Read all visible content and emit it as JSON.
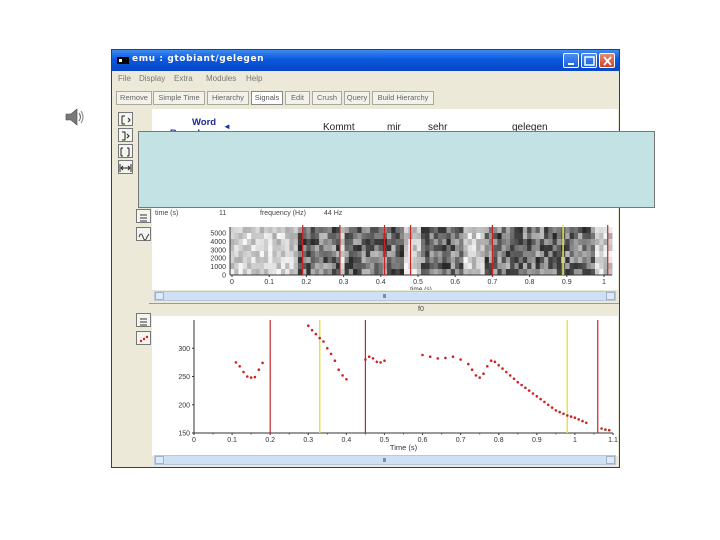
{
  "window": {
    "title": "emu : gtobiant/gelegen"
  },
  "menu": [
    "File",
    "Display",
    "Extra",
    "Modules",
    "Help"
  ],
  "toolbar": [
    "Remove",
    "Simple Time",
    "Hierarchy",
    "Signals",
    "Edit",
    "Crush",
    "Query",
    "Build Hierarchy"
  ],
  "toolbar_active": "Signals",
  "labels": {
    "tier_name": "Word",
    "tier_name2": "Boundary",
    "words": [
      "Kommt",
      "mir",
      "sehr",
      "gelegen"
    ]
  },
  "spectrogram": {
    "time_label": "time (s)",
    "time_value": "11",
    "freq_label": "frequency (Hz)",
    "freq_value": "44 Hz",
    "y_ticks": [
      "5000",
      "4000",
      "3000",
      "2000",
      "1000",
      "0"
    ],
    "x_ticks": [
      "0",
      "0.1",
      "0.2",
      "0.3",
      "0.4",
      "0.5",
      "0.6",
      "0.7",
      "0.8",
      "0.9",
      "1"
    ],
    "x_label": "time (s)"
  },
  "pitch_header": "f0",
  "chart_data": {
    "type": "scatter",
    "xlabel": "Time (s)",
    "ylabel": "",
    "xlim": [
      0,
      1.1
    ],
    "ylim": [
      150,
      350
    ],
    "x_ticks": [
      "0",
      "0.1",
      "0.2",
      "0.3",
      "0.4",
      "0.5",
      "0.6",
      "0.7",
      "0.8",
      "0.9",
      "1",
      "1.1"
    ],
    "y_ticks": [
      "300",
      "250",
      "200",
      "150"
    ],
    "boundaries": [
      0.2,
      0.45,
      1.06
    ],
    "markers": [
      0.33,
      0.98
    ],
    "series": [
      {
        "color": "#cc2222",
        "points": [
          [
            0.11,
            275
          ],
          [
            0.12,
            268
          ],
          [
            0.13,
            258
          ],
          [
            0.14,
            250
          ],
          [
            0.15,
            248
          ],
          [
            0.16,
            249
          ],
          [
            0.17,
            262
          ],
          [
            0.18,
            274
          ],
          [
            0.3,
            340
          ],
          [
            0.31,
            332
          ],
          [
            0.32,
            325
          ],
          [
            0.33,
            318
          ],
          [
            0.34,
            312
          ],
          [
            0.35,
            300
          ],
          [
            0.36,
            290
          ],
          [
            0.37,
            278
          ],
          [
            0.38,
            262
          ],
          [
            0.39,
            252
          ],
          [
            0.4,
            245
          ],
          [
            0.45,
            280
          ],
          [
            0.46,
            285
          ],
          [
            0.47,
            282
          ],
          [
            0.48,
            276
          ],
          [
            0.49,
            275
          ],
          [
            0.5,
            278
          ],
          [
            0.6,
            288
          ],
          [
            0.62,
            285
          ],
          [
            0.64,
            282
          ],
          [
            0.66,
            283
          ],
          [
            0.68,
            285
          ],
          [
            0.7,
            280
          ],
          [
            0.72,
            272
          ],
          [
            0.73,
            262
          ],
          [
            0.74,
            252
          ],
          [
            0.75,
            248
          ],
          [
            0.76,
            255
          ],
          [
            0.77,
            268
          ],
          [
            0.78,
            278
          ],
          [
            0.79,
            276
          ],
          [
            0.8,
            270
          ],
          [
            0.81,
            264
          ],
          [
            0.82,
            258
          ],
          [
            0.83,
            252
          ],
          [
            0.84,
            246
          ],
          [
            0.85,
            240
          ],
          [
            0.86,
            235
          ],
          [
            0.87,
            230
          ],
          [
            0.88,
            225
          ],
          [
            0.89,
            220
          ],
          [
            0.9,
            215
          ],
          [
            0.91,
            210
          ],
          [
            0.92,
            205
          ],
          [
            0.93,
            200
          ],
          [
            0.94,
            195
          ],
          [
            0.95,
            190
          ],
          [
            0.96,
            187
          ],
          [
            0.97,
            184
          ],
          [
            0.98,
            181
          ],
          [
            0.99,
            179
          ],
          [
            1.0,
            177
          ],
          [
            1.01,
            174
          ],
          [
            1.02,
            171
          ],
          [
            1.03,
            168
          ],
          [
            1.07,
            158
          ],
          [
            1.08,
            156
          ],
          [
            1.09,
            155
          ]
        ]
      }
    ]
  },
  "colors": {
    "boundary": "#cc2222",
    "marker": "#e6e34a",
    "titlebar": "#0a58dd",
    "overlay": "#c2e2e4"
  }
}
